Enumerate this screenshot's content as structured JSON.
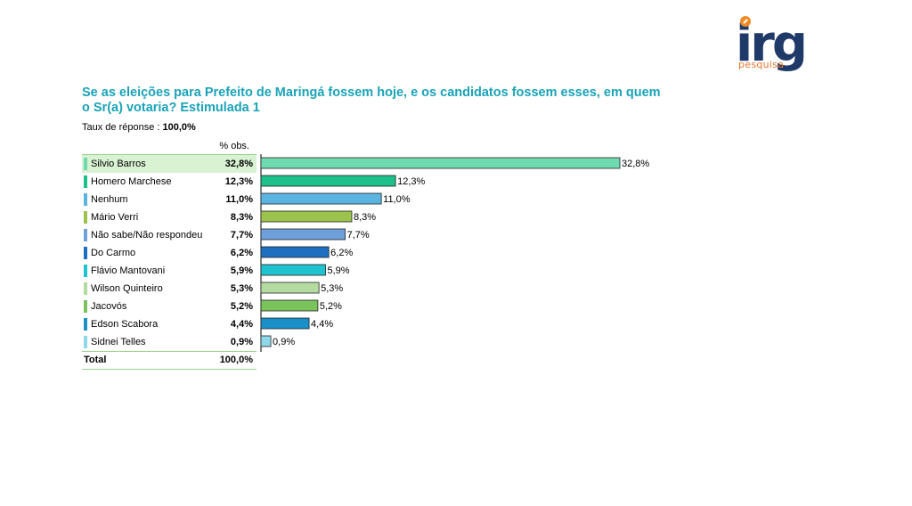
{
  "logo": {
    "word": "irg",
    "sub": "pesquisa"
  },
  "question": "Se as eleições para Prefeito de Maringá fossem hoje, e os candidatos fossem esses, em quem o Sr(a) votaria? Estimulada 1",
  "response_rate": {
    "label": "Taux de réponse : ",
    "value": "100,0%"
  },
  "table": {
    "col_header": "% obs.",
    "total_label": "Total",
    "total_value": "100,0%"
  },
  "chart_data": {
    "type": "bar",
    "orientation": "horizontal",
    "categories": [
      "Silvio Barros",
      "Homero Marchese",
      "Nenhum",
      "Mário Verri",
      "Não sabe/Não respondeu",
      "Do Carmo",
      "Flávio Mantovani",
      "Wilson Quinteiro",
      "Jacovós",
      "Edson Scabora",
      "Sidnei Telles"
    ],
    "values": [
      32.8,
      12.3,
      11.0,
      8.3,
      7.7,
      6.2,
      5.9,
      5.3,
      5.2,
      4.4,
      0.9
    ],
    "value_labels": [
      "32,8%",
      "12,3%",
      "11,0%",
      "8,3%",
      "7,7%",
      "6,2%",
      "5,9%",
      "5,3%",
      "5,2%",
      "4,4%",
      "0,9%"
    ],
    "colors": [
      "#6fd9b0",
      "#1dbf8a",
      "#5ab4e0",
      "#9cc44c",
      "#6d9fd8",
      "#1f6fc0",
      "#1fc3cf",
      "#b4dca0",
      "#7ac25a",
      "#1a8fc8",
      "#8fd8ea"
    ],
    "xlim": [
      0,
      32.8
    ],
    "grid": false
  }
}
